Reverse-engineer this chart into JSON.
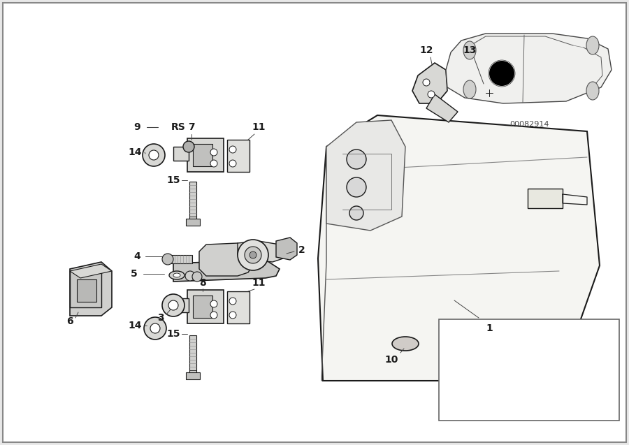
{
  "figsize": [
    9.0,
    6.37
  ],
  "dpi": 100,
  "bg_color": "#e8e8e8",
  "diagram_bg": "#ffffff",
  "border_color": "#aaaaaa",
  "line_color": "#1a1a1a",
  "diagram_num": "00082914"
}
